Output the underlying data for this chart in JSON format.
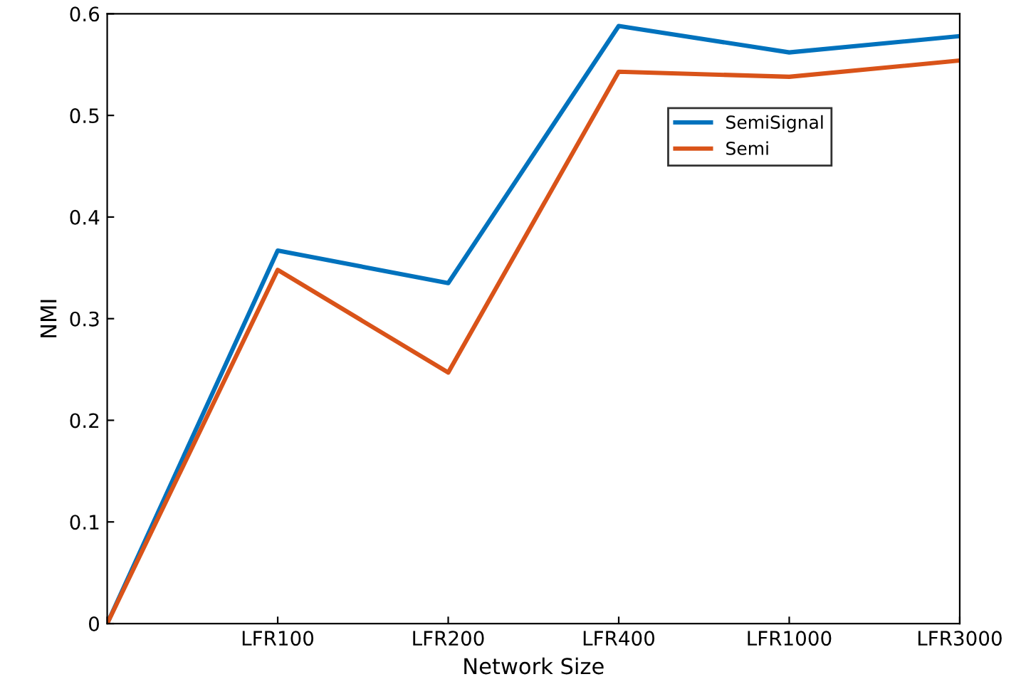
{
  "chart_data": {
    "type": "line",
    "xlabel": "Network Size",
    "ylabel": "NMI",
    "categories": [
      null,
      "LFR100",
      "LFR200",
      "LFR400",
      "LFR1000",
      "LFR3000"
    ],
    "series": [
      {
        "name": "SemiSignal",
        "color": "#0072bd",
        "values": [
          0,
          0.367,
          0.335,
          0.588,
          0.562,
          0.578
        ]
      },
      {
        "name": "Semi",
        "color": "#d95319",
        "values": [
          0,
          0.348,
          0.247,
          0.543,
          0.538,
          0.554
        ]
      }
    ],
    "ylim": [
      0,
      0.6
    ],
    "yticks": [
      0,
      0.1,
      0.2,
      0.3,
      0.4,
      0.5,
      0.6
    ],
    "legend": "top right",
    "grid": false,
    "marker": "none",
    "line_style": "solid"
  }
}
